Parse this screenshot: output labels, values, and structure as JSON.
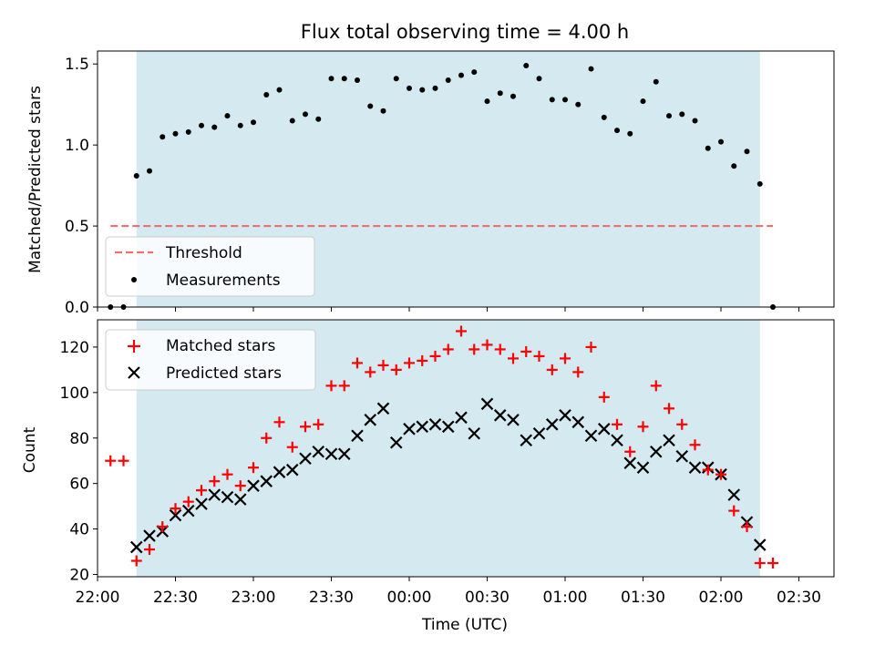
{
  "chart_data": [
    {
      "type": "scatter",
      "title": "Flux total observing time = 4.00 h",
      "xlabel": "",
      "ylabel": "Matched/Predicted stars",
      "ylim": [
        0,
        1.58
      ],
      "yticks": [
        "0.0",
        "0.5",
        "1.0",
        "1.5"
      ],
      "ytick_values": [
        0,
        0.5,
        1.0,
        1.5
      ],
      "shaded_interval": {
        "start": "22:15",
        "end": "02:15",
        "color": "#d4eaf0"
      },
      "threshold": {
        "name": "Threshold",
        "value": 0.5,
        "x_start": "22:05",
        "x_end": "02:20",
        "color": "#f07070"
      },
      "legend": {
        "placement": "lower-left",
        "entries": [
          "Threshold",
          "Measurements"
        ]
      },
      "series": [
        {
          "name": "Measurements",
          "color": "#000000",
          "marker": "dot",
          "x": [
            "22:05",
            "22:10",
            "22:15",
            "22:20",
            "22:25",
            "22:30",
            "22:35",
            "22:40",
            "22:45",
            "22:50",
            "22:55",
            "23:00",
            "23:05",
            "23:10",
            "23:15",
            "23:20",
            "23:25",
            "23:30",
            "23:35",
            "23:40",
            "23:45",
            "23:50",
            "23:55",
            "00:00",
            "00:05",
            "00:10",
            "00:15",
            "00:20",
            "00:25",
            "00:30",
            "00:35",
            "00:40",
            "00:45",
            "00:50",
            "00:55",
            "01:00",
            "01:05",
            "01:10",
            "01:15",
            "01:20",
            "01:25",
            "01:30",
            "01:35",
            "01:40",
            "01:45",
            "01:50",
            "01:55",
            "02:00",
            "02:05",
            "02:10",
            "02:15",
            "02:20"
          ],
          "y": [
            0.0,
            0.0,
            0.81,
            0.84,
            1.05,
            1.07,
            1.08,
            1.12,
            1.11,
            1.18,
            1.12,
            1.14,
            1.31,
            1.34,
            1.15,
            1.19,
            1.16,
            1.41,
            1.41,
            1.4,
            1.24,
            1.21,
            1.41,
            1.35,
            1.34,
            1.35,
            1.4,
            1.43,
            1.45,
            1.27,
            1.32,
            1.3,
            1.49,
            1.41,
            1.28,
            1.28,
            1.25,
            1.47,
            1.17,
            1.09,
            1.07,
            1.27,
            1.39,
            1.18,
            1.19,
            1.15,
            0.98,
            1.02,
            0.87,
            0.96,
            0.76,
            0.0
          ]
        }
      ]
    },
    {
      "type": "scatter",
      "xlabel": "Time (UTC)",
      "ylabel": "Count",
      "ylim": [
        19,
        132
      ],
      "yticks": [
        "20",
        "40",
        "60",
        "80",
        "100",
        "120"
      ],
      "ytick_values": [
        20,
        40,
        60,
        80,
        100,
        120
      ],
      "xticks": [
        "22:00",
        "22:30",
        "23:00",
        "23:30",
        "00:00",
        "00:30",
        "01:00",
        "01:30",
        "02:00",
        "02:30"
      ],
      "shaded_interval": {
        "start": "22:15",
        "end": "02:15",
        "color": "#d4eaf0"
      },
      "legend": {
        "placement": "upper-left",
        "entries": [
          "Matched stars",
          "Predicted stars"
        ]
      },
      "series": [
        {
          "name": "Matched stars",
          "color": "#ff0000",
          "marker": "plus",
          "x": [
            "22:05",
            "22:10",
            "22:15",
            "22:20",
            "22:25",
            "22:30",
            "22:35",
            "22:40",
            "22:45",
            "22:50",
            "22:55",
            "23:00",
            "23:05",
            "23:10",
            "23:15",
            "23:20",
            "23:25",
            "23:30",
            "23:35",
            "23:40",
            "23:45",
            "23:50",
            "23:55",
            "00:00",
            "00:05",
            "00:10",
            "00:15",
            "00:20",
            "00:25",
            "00:30",
            "00:35",
            "00:40",
            "00:45",
            "00:50",
            "00:55",
            "01:00",
            "01:05",
            "01:10",
            "01:15",
            "01:20",
            "01:25",
            "01:30",
            "01:35",
            "01:40",
            "01:45",
            "01:50",
            "01:55",
            "02:00",
            "02:05",
            "02:10",
            "02:15",
            "02:20"
          ],
          "y": [
            70,
            70,
            26,
            31,
            41,
            49,
            52,
            57,
            61,
            64,
            59,
            67,
            80,
            87,
            76,
            85,
            86,
            103,
            103,
            113,
            109,
            112,
            110,
            113,
            114,
            116,
            119,
            127,
            119,
            121,
            119,
            115,
            118,
            116,
            110,
            115,
            109,
            120,
            98,
            86,
            74,
            85,
            103,
            93,
            86,
            77,
            66,
            64,
            48,
            41,
            25,
            25
          ]
        },
        {
          "name": "Predicted stars",
          "color": "#000000",
          "marker": "x",
          "x": [
            "22:15",
            "22:20",
            "22:25",
            "22:30",
            "22:35",
            "22:40",
            "22:45",
            "22:50",
            "22:55",
            "23:00",
            "23:05",
            "23:10",
            "23:15",
            "23:20",
            "23:25",
            "23:30",
            "23:35",
            "23:40",
            "23:45",
            "23:50",
            "23:55",
            "00:00",
            "00:05",
            "00:10",
            "00:15",
            "00:20",
            "00:25",
            "00:30",
            "00:35",
            "00:40",
            "00:45",
            "00:50",
            "00:55",
            "01:00",
            "01:05",
            "01:10",
            "01:15",
            "01:20",
            "01:25",
            "01:30",
            "01:35",
            "01:40",
            "01:45",
            "01:50",
            "01:55",
            "02:00",
            "02:05",
            "02:10",
            "02:15"
          ],
          "y": [
            32,
            37,
            39,
            46,
            48,
            51,
            55,
            54,
            53,
            59,
            61,
            65,
            66,
            71,
            74,
            73,
            73,
            81,
            88,
            93,
            78,
            84,
            85,
            86,
            85,
            89,
            82,
            95,
            90,
            88,
            79,
            82,
            86,
            90,
            87,
            81,
            84,
            79,
            69,
            67,
            74,
            79,
            72,
            67,
            67,
            64,
            55,
            43,
            33
          ]
        }
      ]
    }
  ]
}
